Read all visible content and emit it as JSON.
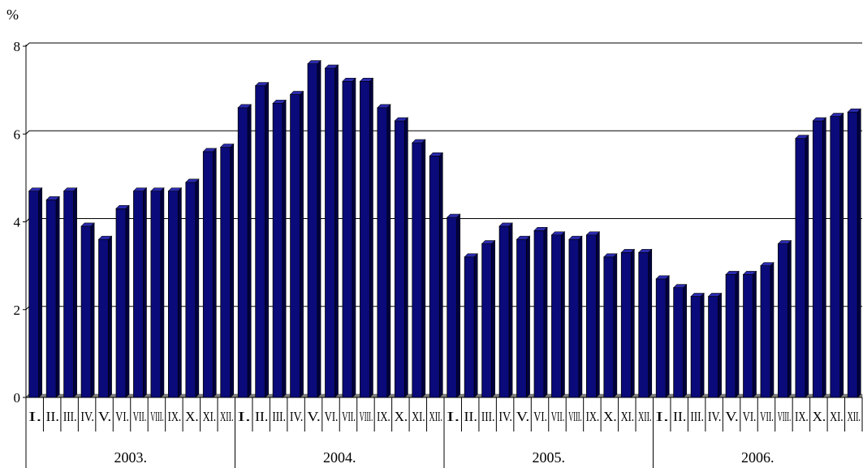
{
  "chart_data": {
    "type": "bar",
    "unit_label": "%",
    "ylim": [
      0,
      8
    ],
    "yticks": [
      "0",
      "2",
      "4",
      "6",
      "8"
    ],
    "grid": true,
    "bar_color": "#0a0a7a",
    "groups": [
      {
        "label": "2003.",
        "start": 0,
        "count": 12
      },
      {
        "label": "2004.",
        "start": 12,
        "count": 12
      },
      {
        "label": "2005.",
        "start": 24,
        "count": 12
      },
      {
        "label": "2006.",
        "start": 36,
        "count": 12
      }
    ],
    "categories": [
      "I.",
      "II.",
      "III.",
      "IV.",
      "V.",
      "VI.",
      "VII.",
      "VIII.",
      "IX.",
      "X.",
      "XI.",
      "XII.",
      "I.",
      "II.",
      "III.",
      "IV.",
      "V.",
      "VI.",
      "VII.",
      "VIII.",
      "IX.",
      "X.",
      "XI.",
      "XII.",
      "I.",
      "II.",
      "III.",
      "IV.",
      "V.",
      "VI.",
      "VII.",
      "VIII.",
      "IX.",
      "X.",
      "XI.",
      "XII.",
      "I.",
      "II.",
      "III.",
      "IV.",
      "V.",
      "VI.",
      "VII.",
      "VIII.",
      "IX.",
      "X.",
      "XI.",
      "XII."
    ],
    "values": [
      4.7,
      4.5,
      4.7,
      3.9,
      3.6,
      4.3,
      4.7,
      4.7,
      4.7,
      4.9,
      5.6,
      5.7,
      6.6,
      7.1,
      6.7,
      6.9,
      7.6,
      7.5,
      7.2,
      7.2,
      6.6,
      6.3,
      5.8,
      5.5,
      4.1,
      3.2,
      3.5,
      3.9,
      3.6,
      3.8,
      3.7,
      3.6,
      3.7,
      3.2,
      3.3,
      3.3,
      2.7,
      2.5,
      2.3,
      2.3,
      2.8,
      2.8,
      3.0,
      3.5,
      5.9,
      6.3,
      6.4,
      6.5
    ]
  }
}
